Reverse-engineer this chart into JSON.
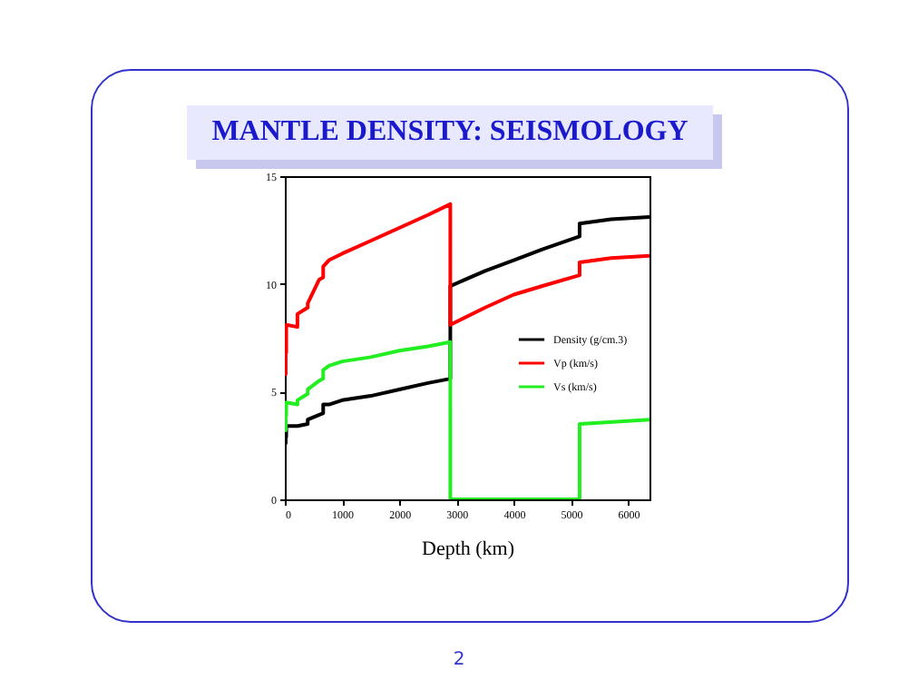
{
  "chart_data": {
    "type": "line",
    "title": "MANTLE DENSITY: SEISMOLOGY",
    "xlabel": "Depth (km)",
    "xlim": [
      0,
      6371
    ],
    "xticks": [
      0,
      1000,
      2000,
      3000,
      4000,
      5000,
      6000
    ],
    "ylim": [
      0,
      15
    ],
    "yticks": [
      0,
      5,
      10,
      15
    ],
    "legend": "right",
    "grid": false,
    "annotations": [
      "2"
    ],
    "series": [
      {
        "name": "Density (g/cm.3)",
        "color": "#000000",
        "x": [
          0,
          15,
          15,
          24,
          24,
          80,
          220,
          220,
          400,
          400,
          670,
          670,
          771,
          1000,
          1500,
          2000,
          2500,
          2891,
          2891,
          3500,
          4000,
          4500,
          5150,
          5150,
          5700,
          6371
        ],
        "values": [
          2.6,
          2.6,
          2.9,
          2.9,
          3.4,
          3.4,
          3.4,
          3.4,
          3.5,
          3.7,
          4.0,
          4.4,
          4.4,
          4.6,
          4.8,
          5.1,
          5.4,
          5.6,
          9.9,
          10.6,
          11.1,
          11.6,
          12.2,
          12.8,
          13.0,
          13.1
        ]
      },
      {
        "name": "Vp (km/s)",
        "color": "#ff0000",
        "x": [
          0,
          15,
          15,
          24,
          24,
          220,
          220,
          400,
          400,
          600,
          670,
          670,
          771,
          1000,
          1500,
          2000,
          2500,
          2891,
          2891,
          3500,
          4000,
          4500,
          5150,
          5150,
          5700,
          6371
        ],
        "values": [
          5.8,
          5.8,
          6.8,
          6.8,
          8.1,
          8.0,
          8.6,
          8.9,
          9.1,
          10.2,
          10.3,
          10.8,
          11.1,
          11.4,
          12.0,
          12.6,
          13.2,
          13.7,
          8.1,
          8.9,
          9.5,
          9.9,
          10.4,
          11.0,
          11.2,
          11.3
        ]
      },
      {
        "name": "Vs (km/s)",
        "color": "#22ee22",
        "x": [
          0,
          15,
          15,
          24,
          24,
          220,
          220,
          400,
          400,
          600,
          670,
          670,
          771,
          1000,
          1500,
          2000,
          2500,
          2891,
          2891,
          5150,
          5150,
          6371
        ],
        "values": [
          3.2,
          3.2,
          3.9,
          3.9,
          4.5,
          4.4,
          4.6,
          4.9,
          5.1,
          5.5,
          5.6,
          6.0,
          6.2,
          6.4,
          6.6,
          6.9,
          7.1,
          7.3,
          0,
          0,
          3.5,
          3.7
        ]
      }
    ]
  }
}
